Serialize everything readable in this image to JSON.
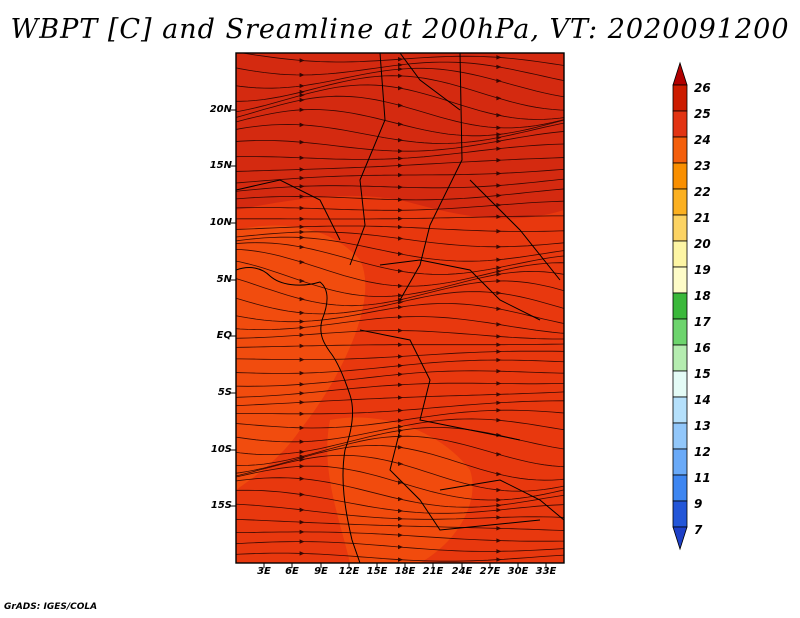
{
  "title": "WBPT [C] and Sreamline at 200hPa, VT: 2020091200",
  "footer": "GrADS: IGES/COLA",
  "map": {
    "latitude_labels": [
      "20N",
      "15N",
      "10N",
      "5N",
      "EQ",
      "5S",
      "10S",
      "15S"
    ],
    "longitude_labels": [
      "3E",
      "6E",
      "9E",
      "12E",
      "15E",
      "18E",
      "21E",
      "24E",
      "27E",
      "30E",
      "33E"
    ],
    "fill_colors": {
      "base": "#e8380e",
      "darker": "#d42a10",
      "lighter": "#f2500e"
    }
  },
  "colorbar": {
    "labels": [
      "26",
      "25",
      "24",
      "23",
      "22",
      "21",
      "20",
      "19",
      "18",
      "17",
      "16",
      "15",
      "14",
      "13",
      "12",
      "11",
      "9",
      "7"
    ],
    "colors": [
      "#b10000",
      "#cc1c00",
      "#e23413",
      "#f45f0c",
      "#f98f00",
      "#fbb021",
      "#fcd363",
      "#fdf5a4",
      "#fefcc8",
      "#3bb83b",
      "#6dd46d",
      "#b5ecb0",
      "#e4fbf6",
      "#b5e0fb",
      "#92c7fa",
      "#6aaaf8",
      "#3e86f1",
      "#2356d8",
      "#1e40c8"
    ]
  }
}
